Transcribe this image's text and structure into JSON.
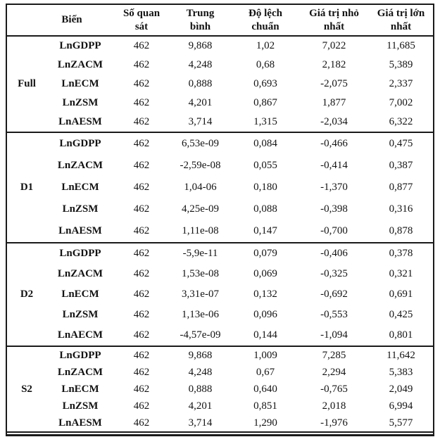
{
  "colors": {
    "border": "#1a1a1a",
    "text": "#131313",
    "background": "#ffffff"
  },
  "table": {
    "header": {
      "variable": "Biến",
      "obs": "Số quan\nsát",
      "mean": "Trung\nbình",
      "std": "Độ lệch\nchuẩn",
      "min": "Giá trị nhỏ\nnhất",
      "max": "Giá trị lớn\nnhất"
    },
    "sections": [
      {
        "group": "Full",
        "rows": [
          {
            "variable": "LnGDPP",
            "obs": "462",
            "mean": "9,868",
            "std": "1,02",
            "min": "7,022",
            "max": "11,685"
          },
          {
            "variable": "LnZACM",
            "obs": "462",
            "mean": "4,248",
            "std": "0,68",
            "min": "2,182",
            "max": "5,389"
          },
          {
            "variable": "LnECM",
            "obs": "462",
            "mean": "0,888",
            "std": "0,693",
            "min": "-2,075",
            "max": "2,337"
          },
          {
            "variable": "LnZSM",
            "obs": "462",
            "mean": "4,201",
            "std": "0,867",
            "min": "1,877",
            "max": "7,002"
          },
          {
            "variable": "LnAESM",
            "obs": "462",
            "mean": "3,714",
            "std": "1,315",
            "min": "-2,034",
            "max": "6,322"
          }
        ]
      },
      {
        "group": "D1",
        "rows": [
          {
            "variable": "LnGDPP",
            "obs": "462",
            "mean": "6,53e-09",
            "std": "0,084",
            "min": "-0,466",
            "max": "0,475"
          },
          {
            "variable": "LnZACM",
            "obs": "462",
            "mean": "-2,59e-08",
            "std": "0,055",
            "min": "-0,414",
            "max": "0,387"
          },
          {
            "variable": "LnECM",
            "obs": "462",
            "mean": "1,04-06",
            "std": "0,180",
            "min": "-1,370",
            "max": "0,877"
          },
          {
            "variable": "LnZSM",
            "obs": "462",
            "mean": "4,25e-09",
            "std": "0,088",
            "min": "-0,398",
            "max": "0,316"
          },
          {
            "variable": "LnAESM",
            "obs": "462",
            "mean": "1,11e-08",
            "std": "0,147",
            "min": "-0,700",
            "max": "0,878"
          }
        ]
      },
      {
        "group": "D2",
        "rows": [
          {
            "variable": "LnGDPP",
            "obs": "462",
            "mean": "-5,9e-11",
            "std": "0,079",
            "min": "-0,406",
            "max": "0,378"
          },
          {
            "variable": "LnZACM",
            "obs": "462",
            "mean": "1,53e-08",
            "std": "0,069",
            "min": "-0,325",
            "max": "0,321"
          },
          {
            "variable": "LnECM",
            "obs": "462",
            "mean": "3,31e-07",
            "std": "0,132",
            "min": "-0,692",
            "max": "0,691"
          },
          {
            "variable": "LnZSM",
            "obs": "462",
            "mean": "1,13e-06",
            "std": "0,096",
            "min": "-0,553",
            "max": "0,425"
          },
          {
            "variable": "LnAECM",
            "obs": "462",
            "mean": "-4,57e-09",
            "std": "0,144",
            "min": "-1,094",
            "max": "0,801"
          }
        ]
      },
      {
        "group": "S2",
        "rows": [
          {
            "variable": "LnGDPP",
            "obs": "462",
            "mean": "9,868",
            "std": "1,009",
            "min": "7,285",
            "max": "11,642"
          },
          {
            "variable": "LnZACM",
            "obs": "462",
            "mean": "4,248",
            "std": "0,67",
            "min": "2,294",
            "max": "5,383"
          },
          {
            "variable": "LnECM",
            "obs": "462",
            "mean": "0,888",
            "std": "0,640",
            "min": "-0,765",
            "max": "2,049"
          },
          {
            "variable": "LnZSM",
            "obs": "462",
            "mean": "4,201",
            "std": "0,851",
            "min": "2,018",
            "max": "6,994"
          },
          {
            "variable": "LnAESM",
            "obs": "462",
            "mean": "3,714",
            "std": "1,290",
            "min": "-1,976",
            "max": "5,577"
          }
        ]
      }
    ]
  }
}
